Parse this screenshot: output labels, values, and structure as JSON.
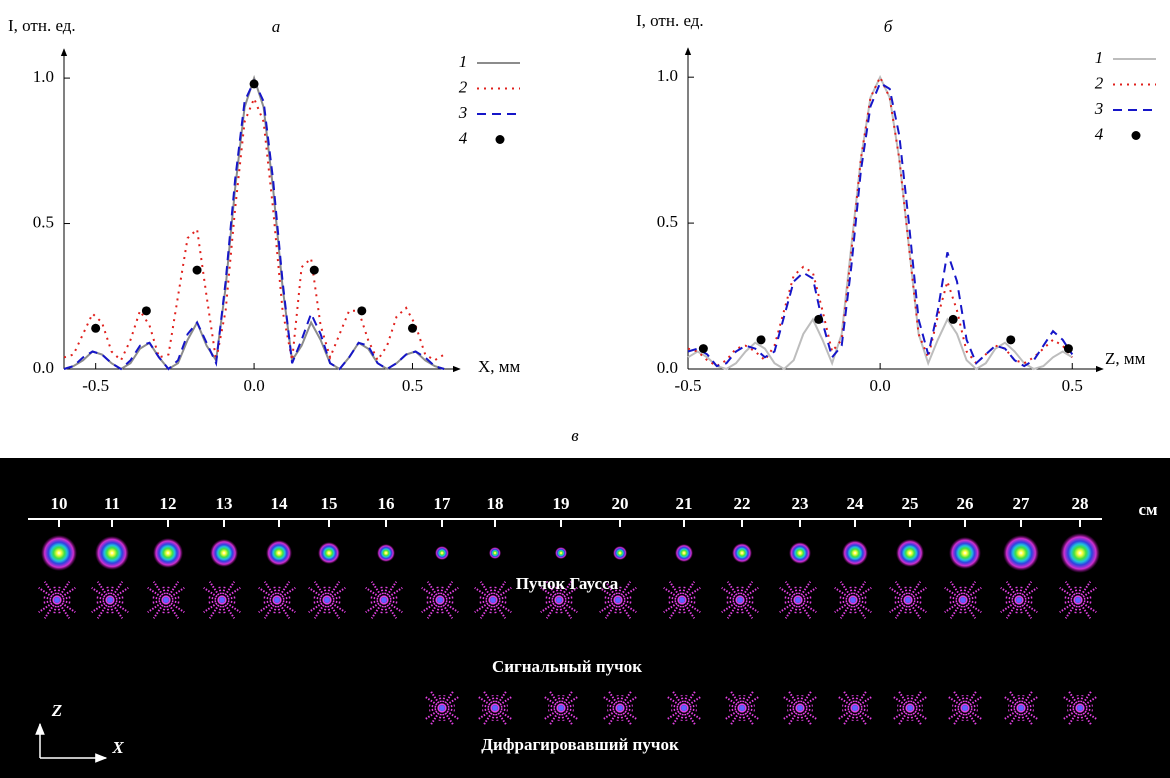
{
  "chart_data": [
    {
      "type": "line",
      "label": "а",
      "ylabel": "I, отн. ед.",
      "xlabel": "X, мм",
      "xlim": [
        -0.6,
        0.65
      ],
      "ylim": [
        0,
        1.1
      ],
      "xticks": [
        -0.5,
        {
          "value": 0,
          "label": "0.0"
        },
        0.5
      ],
      "yticks": [
        {
          "value": 0,
          "label": "0.0"
        },
        0.5,
        {
          "value": 1,
          "label": "1.0"
        }
      ],
      "x": [
        -0.6,
        -0.57,
        -0.54,
        -0.51,
        -0.48,
        -0.45,
        -0.42,
        -0.39,
        -0.36,
        -0.33,
        -0.3,
        -0.27,
        -0.24,
        -0.21,
        -0.18,
        -0.15,
        -0.12,
        -0.09,
        -0.06,
        -0.03,
        0,
        0.03,
        0.06,
        0.09,
        0.12,
        0.15,
        0.18,
        0.21,
        0.24,
        0.27,
        0.3,
        0.33,
        0.36,
        0.39,
        0.42,
        0.45,
        0.48,
        0.51,
        0.54,
        0.57,
        0.6
      ],
      "series": [
        {
          "name": "1",
          "color": "#8c8c8c",
          "style": "solid",
          "values": [
            0.0,
            0.01,
            0.03,
            0.06,
            0.05,
            0.02,
            0.0,
            0.02,
            0.07,
            0.09,
            0.04,
            0.0,
            0.02,
            0.1,
            0.16,
            0.08,
            0.03,
            0.28,
            0.62,
            0.9,
            1.0,
            0.9,
            0.62,
            0.28,
            0.03,
            0.08,
            0.16,
            0.1,
            0.02,
            0.0,
            0.04,
            0.09,
            0.07,
            0.02,
            0.0,
            0.02,
            0.05,
            0.06,
            0.03,
            0.01,
            0.0
          ]
        },
        {
          "name": "2",
          "color": "#e0201c",
          "style": "dotted",
          "values": [
            0.04,
            0.05,
            0.12,
            0.19,
            0.16,
            0.06,
            0.03,
            0.1,
            0.2,
            0.15,
            0.04,
            0.05,
            0.25,
            0.45,
            0.48,
            0.25,
            0.03,
            0.2,
            0.55,
            0.85,
            0.93,
            0.85,
            0.55,
            0.2,
            0.03,
            0.35,
            0.38,
            0.15,
            0.04,
            0.12,
            0.2,
            0.2,
            0.1,
            0.03,
            0.08,
            0.18,
            0.21,
            0.15,
            0.05,
            0.03,
            0.05
          ]
        },
        {
          "name": "3",
          "color": "#1616c8",
          "style": "dashed",
          "values": [
            0.0,
            0.01,
            0.04,
            0.06,
            0.05,
            0.02,
            0.0,
            0.03,
            0.08,
            0.09,
            0.04,
            0.0,
            0.03,
            0.12,
            0.16,
            0.09,
            0.02,
            0.3,
            0.65,
            0.92,
            0.99,
            0.92,
            0.65,
            0.3,
            0.02,
            0.1,
            0.19,
            0.12,
            0.02,
            0.0,
            0.04,
            0.09,
            0.08,
            0.02,
            0.0,
            0.02,
            0.05,
            0.06,
            0.04,
            0.01,
            0.0
          ]
        },
        {
          "name": "4",
          "color": "#000000",
          "style": "marker",
          "x": [
            -0.5,
            -0.34,
            -0.18,
            0,
            0.19,
            0.34,
            0.5
          ],
          "values": [
            0.14,
            0.2,
            0.34,
            0.98,
            0.34,
            0.2,
            0.14
          ]
        }
      ]
    },
    {
      "type": "line",
      "label": "б",
      "ylabel": "I, отн. ед.",
      "xlabel": "Z, мм",
      "xlim": [
        -0.5,
        0.58
      ],
      "ylim": [
        0,
        1.1
      ],
      "xticks": [
        -0.5,
        {
          "value": 0,
          "label": "0.0"
        },
        0.5
      ],
      "yticks": [
        {
          "value": 0,
          "label": "0.0"
        },
        0.5,
        {
          "value": 1,
          "label": "1.0"
        }
      ],
      "x": [
        -0.5,
        -0.475,
        -0.45,
        -0.425,
        -0.4,
        -0.375,
        -0.35,
        -0.325,
        -0.3,
        -0.275,
        -0.25,
        -0.225,
        -0.2,
        -0.175,
        -0.15,
        -0.125,
        -0.1,
        -0.075,
        -0.05,
        -0.025,
        0,
        0.025,
        0.05,
        0.075,
        0.1,
        0.125,
        0.15,
        0.175,
        0.2,
        0.225,
        0.25,
        0.275,
        0.3,
        0.325,
        0.35,
        0.375,
        0.4,
        0.425,
        0.45,
        0.475,
        0.5
      ],
      "series": [
        {
          "name": "1",
          "color": "#bdbdbd",
          "style": "solid",
          "values": [
            0.04,
            0.06,
            0.04,
            0.01,
            0.0,
            0.02,
            0.06,
            0.09,
            0.07,
            0.02,
            0.0,
            0.03,
            0.12,
            0.17,
            0.1,
            0.02,
            0.12,
            0.42,
            0.72,
            0.93,
            1.0,
            0.93,
            0.72,
            0.42,
            0.12,
            0.02,
            0.1,
            0.17,
            0.12,
            0.03,
            0.0,
            0.02,
            0.07,
            0.09,
            0.06,
            0.02,
            0.0,
            0.01,
            0.04,
            0.06,
            0.04
          ]
        },
        {
          "name": "2",
          "color": "#e0201c",
          "style": "dotted",
          "values": [
            0.07,
            0.06,
            0.03,
            0.01,
            0.03,
            0.07,
            0.08,
            0.06,
            0.03,
            0.08,
            0.2,
            0.32,
            0.35,
            0.33,
            0.2,
            0.06,
            0.1,
            0.4,
            0.72,
            0.93,
            1.0,
            0.93,
            0.72,
            0.42,
            0.12,
            0.04,
            0.18,
            0.3,
            0.2,
            0.06,
            0.02,
            0.05,
            0.08,
            0.07,
            0.03,
            0.02,
            0.04,
            0.07,
            0.1,
            0.08,
            0.04
          ]
        },
        {
          "name": "3",
          "color": "#1616c8",
          "style": "dashed",
          "values": [
            0.06,
            0.07,
            0.05,
            0.01,
            0.02,
            0.06,
            0.08,
            0.07,
            0.04,
            0.06,
            0.18,
            0.3,
            0.33,
            0.31,
            0.16,
            0.04,
            0.08,
            0.35,
            0.68,
            0.9,
            0.98,
            0.96,
            0.8,
            0.5,
            0.17,
            0.05,
            0.2,
            0.4,
            0.3,
            0.1,
            0.02,
            0.05,
            0.08,
            0.07,
            0.03,
            0.01,
            0.03,
            0.08,
            0.13,
            0.1,
            0.05
          ]
        },
        {
          "name": "4",
          "color": "#000000",
          "style": "marker",
          "x": [
            -0.46,
            -0.31,
            -0.16,
            0.19,
            0.34,
            0.49
          ],
          "values": [
            0.07,
            0.1,
            0.17,
            0.17,
            0.1,
            0.07
          ]
        }
      ]
    }
  ],
  "panel_c": {
    "label": "в",
    "scale": [
      10,
      11,
      12,
      13,
      14,
      15,
      16,
      17,
      18,
      19,
      20,
      21,
      22,
      23,
      24,
      25,
      26,
      27,
      28
    ],
    "unit": "см",
    "rows": [
      "Пучок Гаусса",
      "Сигнальный пучок",
      "Дифрагировавший пучок"
    ],
    "axes": [
      "Z",
      "X"
    ]
  }
}
